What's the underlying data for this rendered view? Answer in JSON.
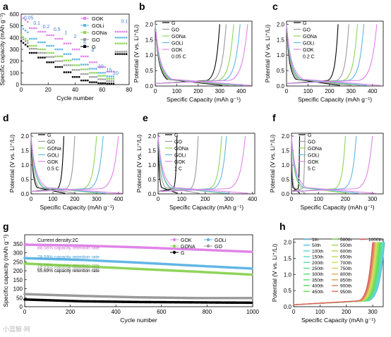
{
  "figure": {
    "watermark": "小蓝鲸·网",
    "legend_labels": [
      "G",
      "GO",
      "GONa",
      "GOLi",
      "GOK"
    ],
    "colors": {
      "G": "#000000",
      "GO": "#9a9a9a",
      "GONa": "#8fd45a",
      "GOLi": "#61b6e6",
      "GOK": "#e084e8"
    }
  },
  "chart_data": [
    {
      "panel": "a",
      "type": "scatter",
      "xlabel": "Cycle number",
      "ylabel": "Specific capacity (mAh g⁻¹)",
      "xlim": [
        0,
        80
      ],
      "ylim": [
        0,
        600
      ],
      "xticks": [
        0,
        20,
        40,
        60,
        80
      ],
      "yticks": [
        0,
        100,
        200,
        300,
        400,
        500,
        600
      ],
      "legend": [
        "GOK",
        "GOLi",
        "GONa",
        "GO",
        "G"
      ],
      "rate_labels": [
        "0.05",
        "0.1",
        "0.2",
        "0.5",
        "1",
        "2",
        "5",
        "8",
        "10",
        "15",
        "20",
        "0.1"
      ],
      "rates": [
        0.05,
        0.1,
        0.2,
        0.5,
        1,
        2,
        5,
        8,
        10,
        15,
        20,
        0.1
      ],
      "series": [
        {
          "name": "GOK",
          "values": [
            520,
            480,
            450,
            420,
            390,
            350,
            300,
            240,
            190,
            150,
            110,
            450
          ]
        },
        {
          "name": "GOLi",
          "values": [
            430,
            390,
            360,
            330,
            300,
            260,
            215,
            170,
            135,
            100,
            70,
            400
          ]
        },
        {
          "name": "GONa",
          "values": [
            360,
            330,
            300,
            270,
            240,
            205,
            165,
            130,
            100,
            75,
            50,
            350
          ]
        },
        {
          "name": "GO",
          "values": [
            340,
            305,
            270,
            235,
            200,
            165,
            125,
            90,
            65,
            45,
            30,
            280
          ]
        },
        {
          "name": "G",
          "values": [
            310,
            270,
            230,
            190,
            150,
            105,
            65,
            35,
            20,
            12,
            8,
            260
          ]
        }
      ]
    },
    {
      "panel": "b",
      "type": "line",
      "rate": "0.05 C",
      "xlabel": "Specific Capacity (mAh g⁻¹)",
      "ylabel": "Potential (V vs. Li⁺/Li)",
      "xlim": [
        0,
        450
      ],
      "ylim": [
        0,
        2.1
      ],
      "xticks": [
        0,
        100,
        200,
        300,
        400
      ],
      "yticks": [
        0.0,
        0.5,
        1.0,
        1.5,
        2.0
      ],
      "legend": [
        "G",
        "GO",
        "GONa",
        "GOLi",
        "GOK"
      ],
      "charge_capacity": [
        300,
        330,
        365,
        395,
        430
      ]
    },
    {
      "panel": "c",
      "type": "line",
      "rate": "0.2 C",
      "xlabel": "Specific Capacity (mAh g⁻¹)",
      "ylabel": "Potential (V vs. Li⁺/Li)",
      "xlim": [
        0,
        450
      ],
      "ylim": [
        0,
        2.1
      ],
      "xticks": [
        0,
        100,
        200,
        300,
        400
      ],
      "yticks": [
        0.0,
        0.5,
        1.0,
        1.5,
        2.0
      ],
      "legend": [
        "G",
        "GO",
        "GONa",
        "GOLi",
        "GOK"
      ],
      "charge_capacity": [
        240,
        290,
        330,
        360,
        420
      ]
    },
    {
      "panel": "d",
      "type": "line",
      "rate": "0.5 C",
      "xlabel": "Specific Capacity (mAh g⁻¹)",
      "ylabel": "Potential (V vs. Li⁺/Li)",
      "xlim": [
        0,
        420
      ],
      "ylim": [
        0,
        2.1
      ],
      "xticks": [
        0,
        100,
        200,
        300,
        400
      ],
      "yticks": [
        0.0,
        0.5,
        1.0,
        1.5,
        2.0
      ],
      "legend": [
        "G",
        "GO",
        "GONa",
        "GOLi",
        "GOK"
      ],
      "charge_capacity": [
        150,
        200,
        300,
        330,
        400
      ]
    },
    {
      "panel": "e",
      "type": "line",
      "rate": "1 C",
      "xlabel": "Specific Capacity (mAh g⁻¹)",
      "ylabel": "Potential (V vs. Li⁺/Li)",
      "xlim": [
        0,
        410
      ],
      "ylim": [
        0,
        2.1
      ],
      "xticks": [
        0,
        100,
        200,
        300,
        400
      ],
      "yticks": [
        0.0,
        0.5,
        1.0,
        1.5,
        2.0
      ],
      "legend": [
        "G",
        "GO",
        "GONa",
        "GOLi",
        "GOK"
      ],
      "charge_capacity": [
        80,
        170,
        270,
        290,
        370
      ]
    },
    {
      "panel": "f",
      "type": "line",
      "rate": "5 C",
      "xlabel": "Specific Capacity (mAh g⁻¹)",
      "ylabel": "Potential (V vs. Li⁺/Li)",
      "xlim": [
        0,
        340
      ],
      "ylim": [
        0,
        2.1
      ],
      "xticks": [
        0,
        100,
        200,
        300
      ],
      "yticks": [
        0.0,
        0.5,
        1.0,
        1.5,
        2.0
      ],
      "legend": [
        "G",
        "GO",
        "GONa",
        "GOLi",
        "GOK"
      ],
      "charge_capacity": [
        30,
        50,
        200,
        240,
        300
      ]
    },
    {
      "panel": "g",
      "type": "scatter",
      "note": "Current density:2C",
      "xlabel": "Cycle number",
      "ylabel": "Specific capacity (mAh g⁻¹)",
      "xlim": [
        0,
        1000
      ],
      "ylim": [
        0,
        400
      ],
      "xticks": [
        0,
        200,
        400,
        600,
        800,
        1000
      ],
      "yticks": [
        0,
        50,
        100,
        150,
        200,
        250,
        300,
        350
      ],
      "legend": [
        "GOK",
        "GOLi",
        "GONA",
        "GO",
        "G"
      ],
      "retention_labels": [
        "88.56% capacity retention rate",
        "78.59% capacity retention rate",
        "74.05% capacity retention rate",
        "68.64% capacity retention rate",
        "55.69% capacity retention rate"
      ],
      "series": [
        {
          "name": "GOK",
          "x": [
            0,
            250,
            500,
            750,
            1000
          ],
          "values": [
            345,
            340,
            330,
            318,
            305
          ]
        },
        {
          "name": "GOLi",
          "x": [
            0,
            250,
            500,
            750,
            1000
          ],
          "values": [
            270,
            260,
            245,
            228,
            212
          ]
        },
        {
          "name": "GONA",
          "x": [
            0,
            250,
            500,
            750,
            1000
          ],
          "values": [
            240,
            225,
            210,
            195,
            178
          ]
        },
        {
          "name": "GO",
          "x": [
            0,
            250,
            500,
            750,
            1000
          ],
          "values": [
            70,
            60,
            52,
            48,
            48
          ]
        },
        {
          "name": "G",
          "x": [
            0,
            250,
            500,
            750,
            1000
          ],
          "values": [
            40,
            30,
            26,
            24,
            22
          ]
        }
      ]
    },
    {
      "panel": "h",
      "type": "line",
      "xlabel": "Specific Capacity (mAh g⁻¹)",
      "ylabel": "Potential (V vs. Li⁺/Li)",
      "xlim": [
        0,
        340
      ],
      "ylim": [
        0,
        2.1
      ],
      "xticks": [
        0,
        100,
        200,
        300
      ],
      "yticks": [
        0.0,
        0.5,
        1.0,
        1.5,
        2.0
      ],
      "legend": [
        "1th",
        "50th",
        "100th",
        "150th",
        "200th",
        "250th",
        "300th",
        "350th",
        "400th",
        "450th",
        "500th",
        "550th",
        "600th",
        "650th",
        "700th",
        "750th",
        "800th",
        "850th",
        "900th",
        "950th",
        "1000th"
      ],
      "charge_capacity_first": 345,
      "charge_capacity_last": 300
    }
  ]
}
